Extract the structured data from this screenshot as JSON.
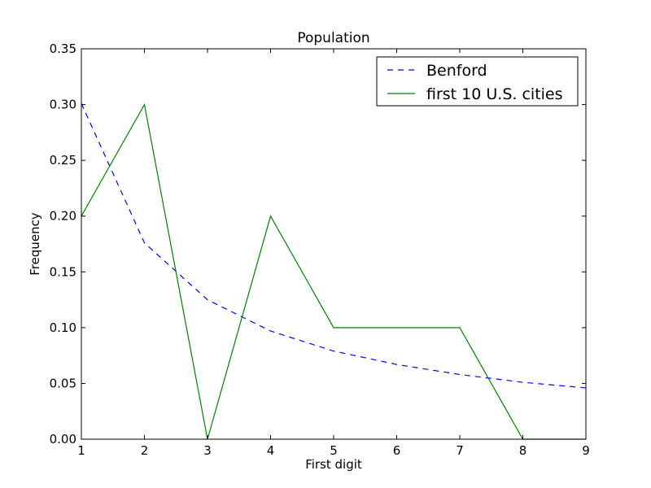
{
  "chart_data": {
    "type": "line",
    "title": "Population",
    "xlabel": "First digit",
    "ylabel": "Frequency",
    "xlim": [
      1,
      9
    ],
    "ylim": [
      0,
      0.35
    ],
    "x_ticks": [
      "1",
      "2",
      "3",
      "4",
      "5",
      "6",
      "7",
      "8",
      "9"
    ],
    "y_ticks": [
      "0.00",
      "0.05",
      "0.10",
      "0.15",
      "0.20",
      "0.25",
      "0.30",
      "0.35"
    ],
    "x_tick_values": [
      1,
      2,
      3,
      4,
      5,
      6,
      7,
      8,
      9
    ],
    "y_tick_values": [
      0,
      0.05,
      0.1,
      0.15,
      0.2,
      0.25,
      0.3,
      0.35
    ],
    "grid": false,
    "legend_position": "top-right",
    "series": [
      {
        "name": "Benford",
        "style": "dashed",
        "color": "#0000ff",
        "x": [
          1,
          2,
          3,
          4,
          5,
          6,
          7,
          8,
          9
        ],
        "y": [
          0.301,
          0.176,
          0.125,
          0.097,
          0.079,
          0.067,
          0.058,
          0.051,
          0.046
        ]
      },
      {
        "name": "first 10 U.S. cities",
        "style": "solid",
        "color": "#008000",
        "x": [
          1,
          2,
          3,
          4,
          5,
          6,
          7,
          8,
          9
        ],
        "y": [
          0.2,
          0.3,
          0.0,
          0.2,
          0.1,
          0.1,
          0.1,
          0.0,
          0.0
        ]
      }
    ]
  }
}
